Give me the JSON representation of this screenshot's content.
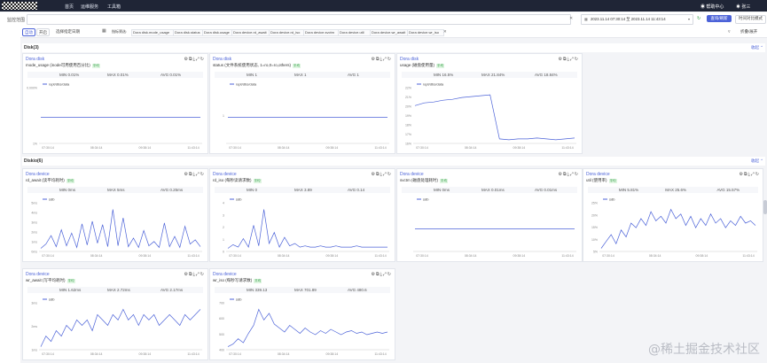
{
  "topbar": {
    "nav": [
      "首页",
      "运维服务",
      "工具箱"
    ],
    "help": "帮助中心",
    "user": "张三"
  },
  "filter": {
    "label": "监控范围",
    "time_range": "2023.11.14 07:30:14 至 2023.11.14 11:43:14",
    "primary_button": "查询/刷新",
    "secondary_button": "时间对比模式"
  },
  "tabs": {
    "tab1": "自动",
    "tab2": "开启",
    "range_label": "选择指定日期"
  },
  "tags": {
    "prefix": "指标筛选:",
    "items": [
      "Dora disk.mode_usage",
      "Dora disk.status",
      "Dora disk.usage",
      "Dora device.rd_await",
      "Dora device.rd_iso",
      "Dora device.svctm",
      "Dora device.util",
      "Dora device.wr_await",
      "Dora device.wr_iso"
    ],
    "right": "折叠/展开"
  },
  "sections": {
    "disk": {
      "title": "Disk(3)",
      "collapse": "收起"
    },
    "diskio": {
      "title": "Diskio(6)",
      "collapse": "收起"
    }
  },
  "panels": [
    {
      "title": "Dora disk",
      "sub": "mode_usage (inode可用使用百分比)",
      "badge": "平均",
      "min": "MIN 0.01%",
      "max": "MAX 0.01%",
      "avg": "AVG 0.01%",
      "legend": "/opt/dbs/data",
      "yticks": [
        "0.000%",
        "1%"
      ],
      "xticks": [
        "07:30:14",
        "08:34:14",
        "09:38:14",
        "11:43:14"
      ],
      "chart_data": {
        "type": "line",
        "series": [
          {
            "name": "/opt/dbs/data",
            "values": [
              0.01,
              0.01,
              0.01,
              0.01,
              0.01,
              0.01,
              0.01,
              0.01
            ]
          }
        ]
      }
    },
    {
      "title": "Dora disk",
      "sub": "status (文件系统使用状态, 1=ro,0=ro,others)",
      "badge": "平均",
      "min": "MIN 1",
      "max": "MAX 1",
      "avg": "AVG 1",
      "legend": "/opt/dbs/data",
      "yticks": [
        "1"
      ],
      "xticks": [
        "07:30:14",
        "08:34:14",
        "09:38:14",
        "11:43:14"
      ],
      "chart_data": {
        "type": "line",
        "series": [
          {
            "name": "/opt/dbs/data",
            "values": [
              1,
              1,
              1,
              1,
              1,
              1,
              1,
              1
            ]
          }
        ]
      }
    },
    {
      "title": "Dora disk",
      "sub": "usage (磁盘使用量)",
      "badge": "平均",
      "min": "MIN 16.5%",
      "max": "MAX 21.84%",
      "avg": "AVG 18.84%",
      "legend": "/opt/dbs/data",
      "yticks": [
        "22%",
        "21%",
        "20%",
        "19%",
        "18%",
        "17%",
        "16%"
      ],
      "xticks": [
        "07:30:14",
        "08:34:14",
        "09:38:14",
        "11:43:14"
      ],
      "chart_data": {
        "type": "line",
        "series": [
          {
            "name": "/opt/dbs/data",
            "values": [
              20.6,
              20.9,
              21.0,
              21.2,
              21.3,
              21.5,
              21.6,
              21.7,
              21.8,
              16.9,
              16.8,
              16.9,
              16.9,
              17.0,
              16.9,
              16.8,
              16.9,
              17.0
            ]
          }
        ]
      }
    },
    {
      "title": "Dora device",
      "sub": "rd_await (读平均耗时)",
      "badge": "平均",
      "min": "MIN 0ms",
      "max": "MAX 5ms",
      "avg": "AVG 0.25ms",
      "legend": "sdb",
      "yticks": [
        "5ms",
        "4ms",
        "3ms",
        "2ms",
        "1ms",
        "0ms"
      ],
      "xticks": [
        "07:30:14",
        "08:34:14",
        "09:38:14",
        "11:43:14"
      ],
      "chart_data": {
        "type": "line",
        "series": [
          {
            "name": "sdb",
            "values": [
              0,
              0.5,
              1.5,
              0.2,
              2.2,
              0.3,
              1.8,
              0.1,
              2.9,
              0.4,
              3.2,
              0.6,
              2.8,
              0.2,
              4.6,
              0.3,
              3.6,
              0.2,
              1.2,
              0.1,
              2.1,
              0.3,
              0.8,
              0.1,
              3.0,
              0.2,
              1.4,
              0.1,
              2.6,
              0.5,
              1.0,
              0.2
            ]
          }
        ]
      }
    },
    {
      "title": "Dora device",
      "sub": "rd_iso (每秒读请求数)",
      "badge": "平均",
      "min": "MIN 0",
      "max": "MAX 3.89",
      "avg": "AVG 0.14",
      "legend": "sdb",
      "yticks": [
        "4",
        "3",
        "2",
        "1",
        "0"
      ],
      "xticks": [
        "07:30:14",
        "08:34:14",
        "09:38:14",
        "11:43:14"
      ],
      "chart_data": {
        "type": "line",
        "series": [
          {
            "name": "sdb",
            "values": [
              0,
              0.3,
              0.1,
              0.8,
              0.1,
              1.9,
              0.2,
              3.2,
              0.4,
              1.3,
              0.1,
              0.9,
              0.2,
              0.4,
              0.1,
              0.2,
              0.1,
              0.1,
              0.2,
              0.1,
              0.1,
              0.2,
              0.1,
              0.1,
              0.1,
              0.2,
              0.1,
              0.1,
              0.1,
              0.1,
              0.1,
              0.1
            ]
          }
        ]
      }
    },
    {
      "title": "Dora device",
      "sub": "svctm (磁盘处理耗时)",
      "badge": "平均",
      "min": "MIN 0ms",
      "max": "MAX 0.01ms",
      "avg": "AVG 0.01ms",
      "legend": "sdb",
      "yticks": [],
      "xticks": [
        "07:30:14",
        "08:34:14",
        "09:38:14",
        "11:43:14"
      ],
      "chart_data": {
        "type": "line",
        "series": [
          {
            "name": "sdb",
            "values": [
              0,
              0,
              0,
              0,
              0,
              0,
              0,
              0
            ]
          }
        ]
      }
    },
    {
      "title": "Dora device",
      "sub": "util (使用率)",
      "badge": "平均",
      "min": "MIN 5.81%",
      "max": "MAX 25.6%",
      "avg": "AVG 15.57%",
      "legend": "sdb",
      "yticks": [
        "25%",
        "20%",
        "15%",
        "10%",
        "5%"
      ],
      "xticks": [
        "07:30:14",
        "08:34:14",
        "09:38:14",
        "11:43:14"
      ],
      "chart_data": {
        "type": "line",
        "series": [
          {
            "name": "sdb",
            "values": [
              6,
              9,
              12,
              8,
              14,
              11,
              17,
              15,
              19,
              16,
              22,
              18,
              20,
              17,
              23,
              19,
              21,
              16,
              20,
              15,
              19,
              16,
              21,
              17,
              19,
              15,
              18,
              16,
              20,
              17,
              18,
              16
            ]
          }
        ]
      }
    },
    {
      "title": "Dora device",
      "sub": "wr_await (写平均耗时)",
      "badge": "平均",
      "min": "MIN 1.62ms",
      "max": "MAX 2.72ms",
      "avg": "AVG 2.17ms",
      "legend": "sdb",
      "yticks": [
        "3ms",
        "2ms",
        "1ms"
      ],
      "xticks": [
        "07:30:14",
        "08:34:14",
        "09:38:14",
        "11:43:14"
      ],
      "chart_data": {
        "type": "line",
        "series": [
          {
            "name": "sdb",
            "values": [
              1.7,
              1.9,
              1.8,
              2.0,
              1.9,
              2.1,
              2.0,
              2.2,
              2.1,
              2.2,
              2.0,
              2.3,
              2.2,
              2.1,
              2.3,
              2.2,
              2.4,
              2.2,
              2.3,
              2.1,
              2.3,
              2.2,
              2.3,
              2.1,
              2.2,
              2.3,
              2.2,
              2.1,
              2.3,
              2.2,
              2.3,
              2.4
            ]
          }
        ]
      }
    },
    {
      "title": "Dora device",
      "sub": "wr_iso (每秒写请求数)",
      "badge": "平均",
      "min": "MIN 339.13",
      "max": "MAX 701.89",
      "avg": "AVG 480.6",
      "legend": "sdb",
      "yticks": [
        "700",
        "600",
        "500",
        "400"
      ],
      "xticks": [
        "07:30:14",
        "08:34:14",
        "09:38:14",
        "11:43:14"
      ],
      "chart_data": {
        "type": "line",
        "series": [
          {
            "name": "sdb",
            "values": [
              360,
              380,
              420,
              390,
              460,
              520,
              640,
              560,
              610,
              530,
              500,
              470,
              520,
              490,
              460,
              500,
              470,
              450,
              480,
              460,
              490,
              470,
              450,
              470,
              480,
              460,
              470,
              450,
              460,
              470,
              460,
              470
            ]
          }
        ]
      }
    }
  ]
}
